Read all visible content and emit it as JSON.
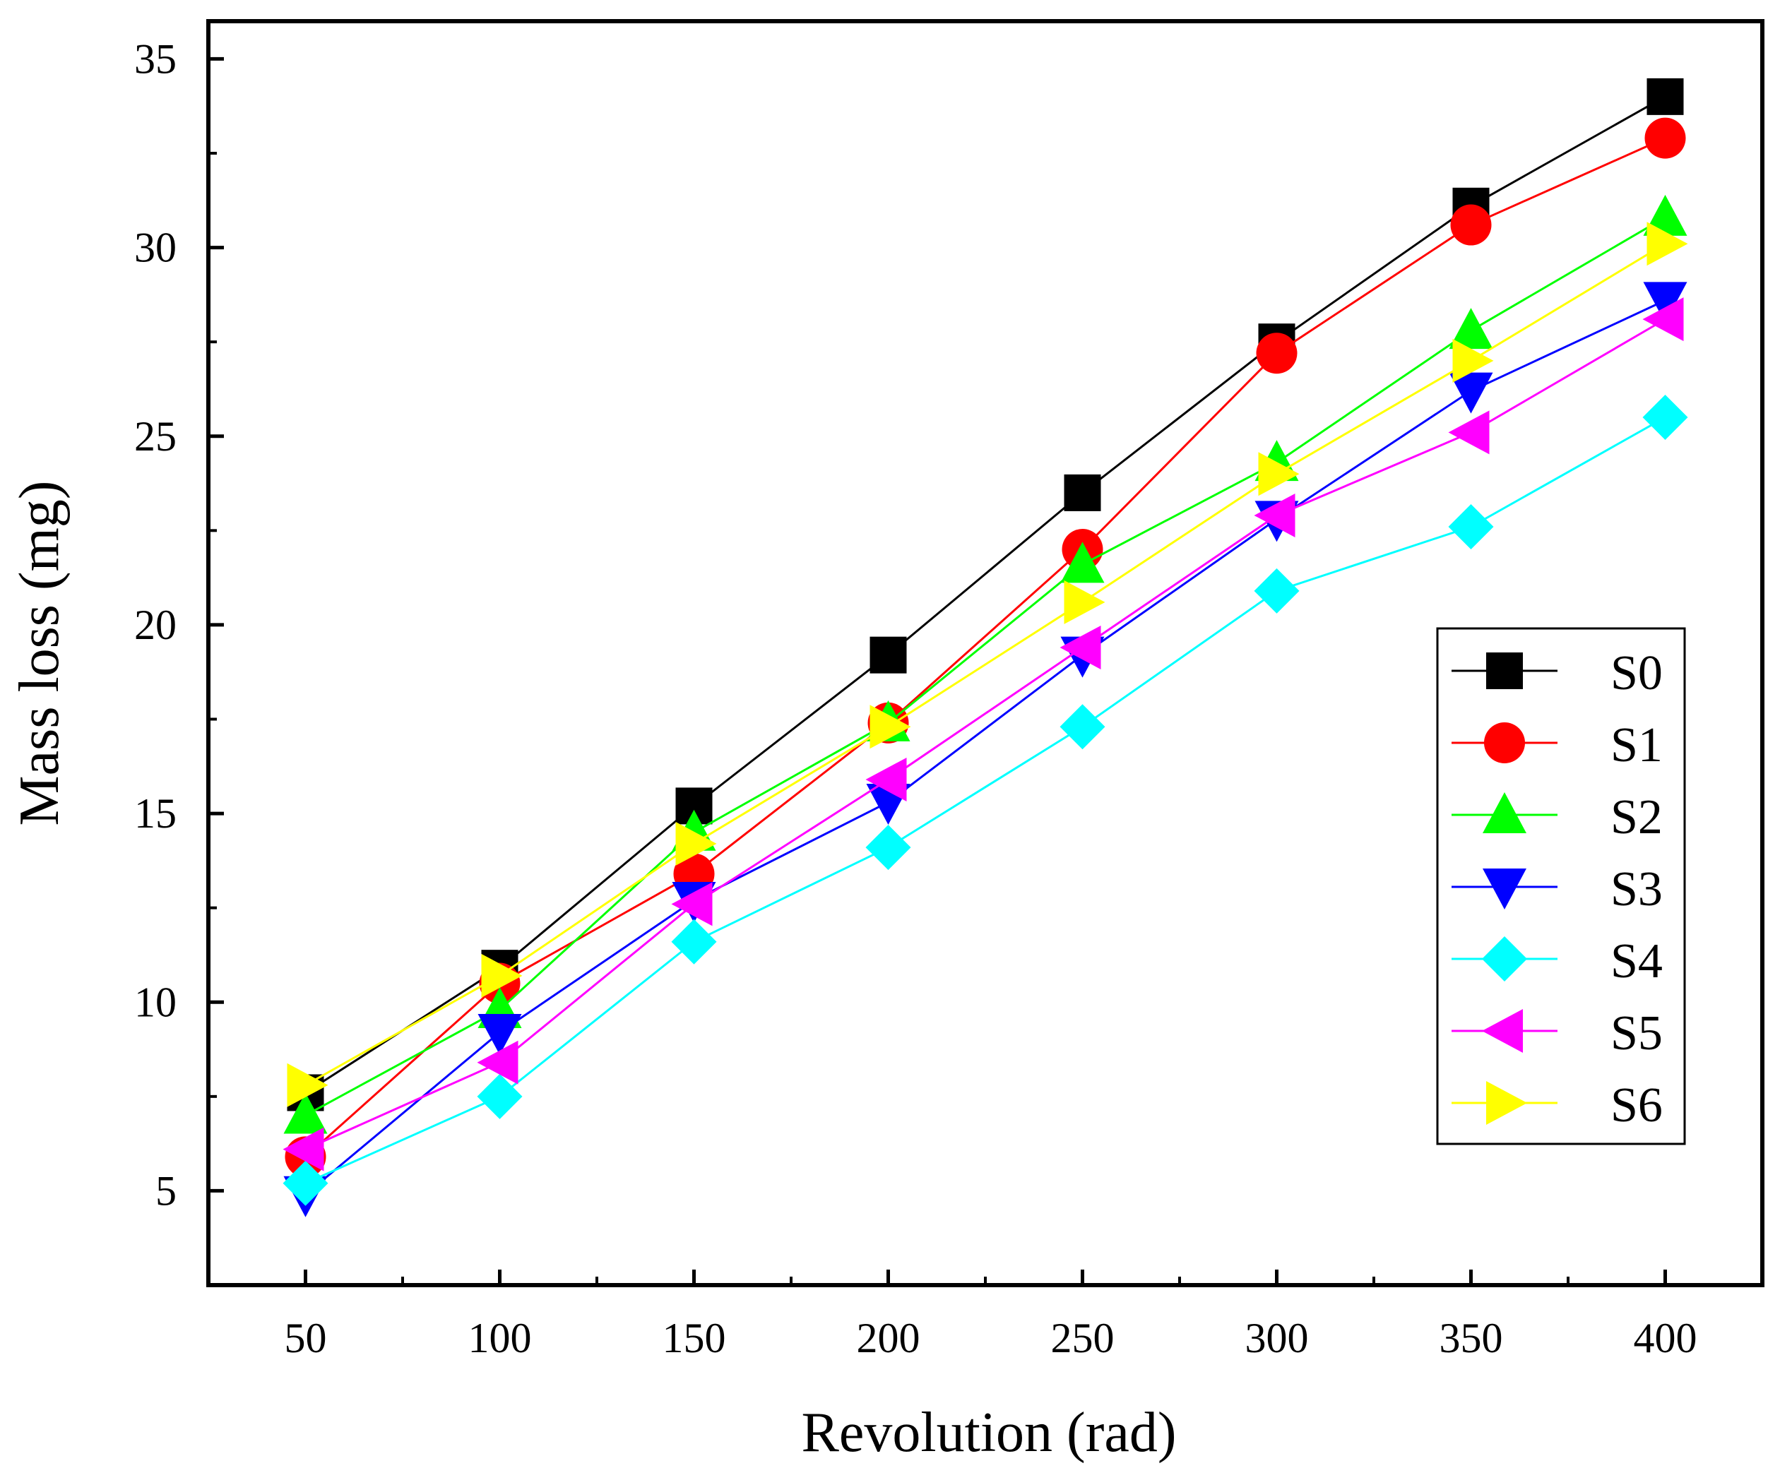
{
  "chart_data": {
    "type": "line",
    "title": "",
    "xlabel": "Revolution (rad)",
    "ylabel": "Mass loss (mg)",
    "x": [
      50,
      100,
      150,
      200,
      250,
      300,
      350,
      400
    ],
    "xticks": [
      "50",
      "100",
      "150",
      "200",
      "250",
      "300",
      "350",
      "400"
    ],
    "yticks": [
      "5",
      "10",
      "15",
      "20",
      "25",
      "30",
      "35"
    ],
    "xlim": [
      25,
      425
    ],
    "ylim": [
      2.5,
      36
    ],
    "grid": false,
    "legend_position": "center-right",
    "series": [
      {
        "name": "S0",
        "color": "#000000",
        "marker": "square",
        "values": [
          7.6,
          10.9,
          15.2,
          19.2,
          23.5,
          27.5,
          31.1,
          34.0
        ]
      },
      {
        "name": "S1",
        "color": "#ff0000",
        "marker": "circle",
        "values": [
          5.9,
          10.5,
          13.4,
          17.4,
          22.0,
          27.2,
          30.6,
          32.9
        ]
      },
      {
        "name": "S2",
        "color": "#00ff00",
        "marker": "triangle-up",
        "values": [
          7.0,
          9.8,
          14.5,
          17.4,
          21.6,
          24.3,
          27.8,
          30.8
        ]
      },
      {
        "name": "S3",
        "color": "#0000ff",
        "marker": "triangle-down",
        "values": [
          4.9,
          9.2,
          12.7,
          15.3,
          19.2,
          22.8,
          26.2,
          28.6
        ]
      },
      {
        "name": "S4",
        "color": "#00ffff",
        "marker": "diamond",
        "values": [
          5.2,
          7.5,
          11.6,
          14.1,
          17.3,
          20.9,
          22.6,
          25.5
        ]
      },
      {
        "name": "S5",
        "color": "#ff00ff",
        "marker": "triangle-left",
        "values": [
          6.1,
          8.4,
          12.6,
          15.9,
          19.4,
          22.9,
          25.1,
          28.1
        ]
      },
      {
        "name": "S6",
        "color": "#ffff00",
        "marker": "triangle-right",
        "values": [
          7.8,
          10.7,
          14.2,
          17.3,
          20.6,
          24.0,
          27.0,
          30.1
        ]
      }
    ]
  }
}
